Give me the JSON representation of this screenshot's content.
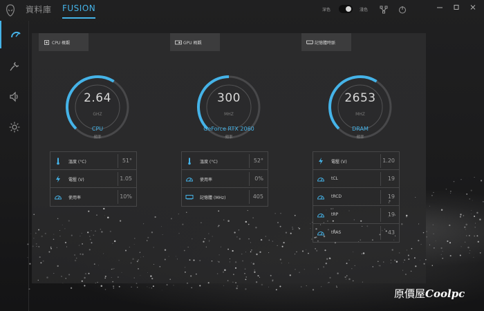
{
  "nav": {
    "tabs": [
      {
        "label": "資料庫"
      },
      {
        "label": "FUSION"
      }
    ],
    "theme": {
      "dark_label": "深色",
      "light_label": "淺色"
    }
  },
  "accent_color": "#45b3e8",
  "sidebar": {
    "items": [
      {
        "icon": "speedometer-icon"
      },
      {
        "icon": "plug-icon"
      },
      {
        "icon": "speaker-icon"
      },
      {
        "icon": "brightness-icon"
      }
    ]
  },
  "panels": [
    {
      "tab_label": "CPU 概觀",
      "gauge_value": "2.64",
      "gauge_unit": "GHZ",
      "gauge_fraction": 0.62,
      "device_name": "CPU",
      "device_sub": "頻率",
      "stats": [
        {
          "icon": "thermometer-icon",
          "label": "溫度 (°C)",
          "value": "51°"
        },
        {
          "icon": "lightning-icon",
          "label": "電壓 (V)",
          "value": "1.05"
        },
        {
          "icon": "gauge-icon",
          "label": "使用率",
          "value": "10%"
        }
      ]
    },
    {
      "tab_label": "GPU 概觀",
      "gauge_value": "300",
      "gauge_unit": "MHZ",
      "gauge_fraction": 0.5,
      "device_name": "GeForce RTX 2060",
      "device_sub": "頻率",
      "stats": [
        {
          "icon": "thermometer-icon",
          "label": "溫度 (°C)",
          "value": "52°"
        },
        {
          "icon": "gauge-icon",
          "label": "使用率",
          "value": "0%"
        },
        {
          "icon": "memory-icon",
          "label": "記憶體 (MHz)",
          "value": "405"
        }
      ]
    },
    {
      "tab_label": "記憶體時脈",
      "gauge_value": "2653",
      "gauge_unit": "MHZ",
      "gauge_fraction": 0.62,
      "device_name": "DRAM",
      "device_sub": "頻率",
      "stats": [
        {
          "icon": "lightning-icon",
          "label": "電壓 (V)",
          "value": "1.20"
        },
        {
          "icon": "gauge-icon",
          "label": "tCL",
          "value": "19"
        },
        {
          "icon": "gauge-icon",
          "label": "tRCD",
          "value": "19"
        },
        {
          "icon": "gauge-icon",
          "label": "tRP",
          "value": "19"
        },
        {
          "icon": "gauge-icon",
          "label": "tRAS",
          "value": "43"
        }
      ]
    }
  ],
  "watermark": {
    "prefix": "原價屋",
    "brand": "Coolpc"
  }
}
